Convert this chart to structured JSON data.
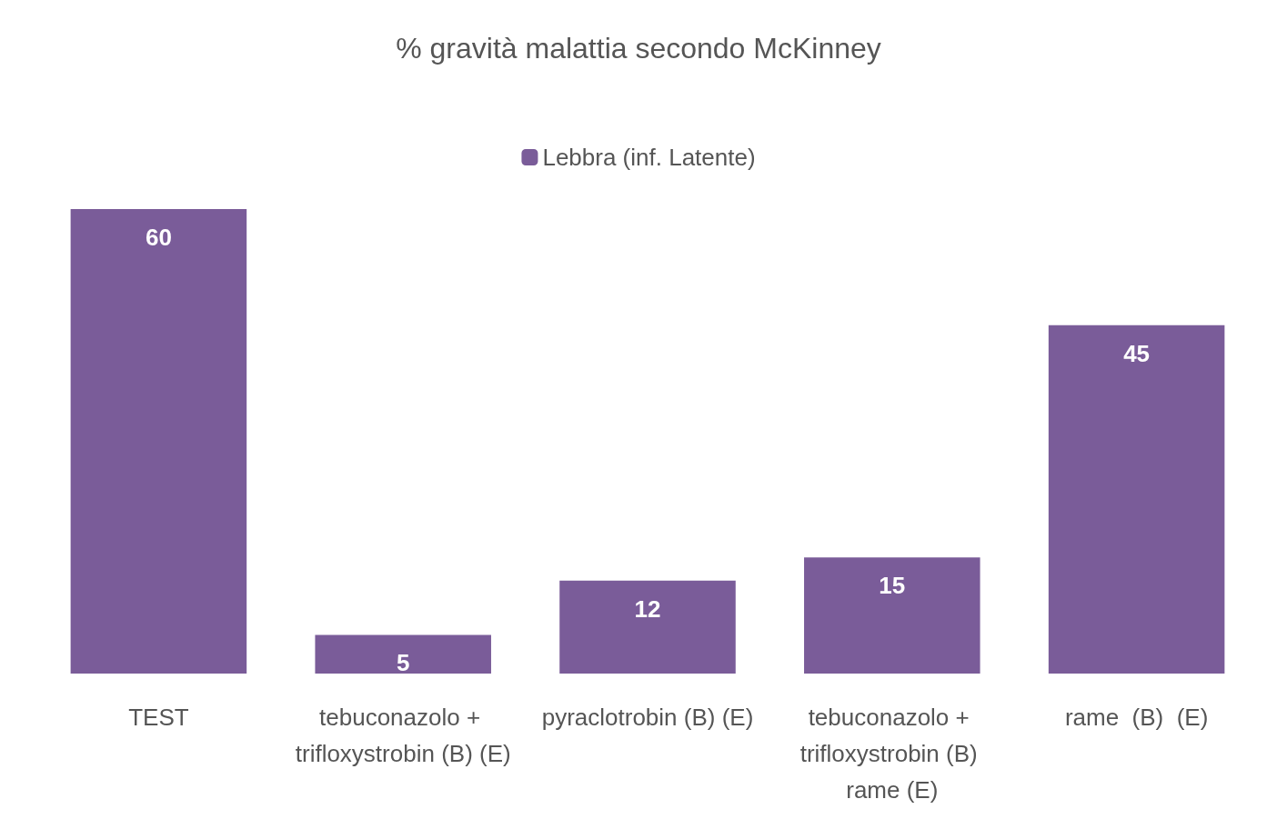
{
  "chart_data": {
    "type": "bar",
    "title": "% gravità malattia secondo McKinney",
    "categories": [
      "TEST",
      "tebuconazolo + trifloxystrobin (B) (E)",
      "pyraclotrobin (B) (E)",
      "tebuconazolo + trifloxystrobin (B) rame (E)",
      "rame  (B)  (E)"
    ],
    "series": [
      {
        "name": "Lebbra (inf. Latente)",
        "color": "#7a5c99",
        "values": [
          60,
          5,
          12,
          15,
          45
        ]
      }
    ],
    "data_labels": true,
    "legend": "top"
  }
}
